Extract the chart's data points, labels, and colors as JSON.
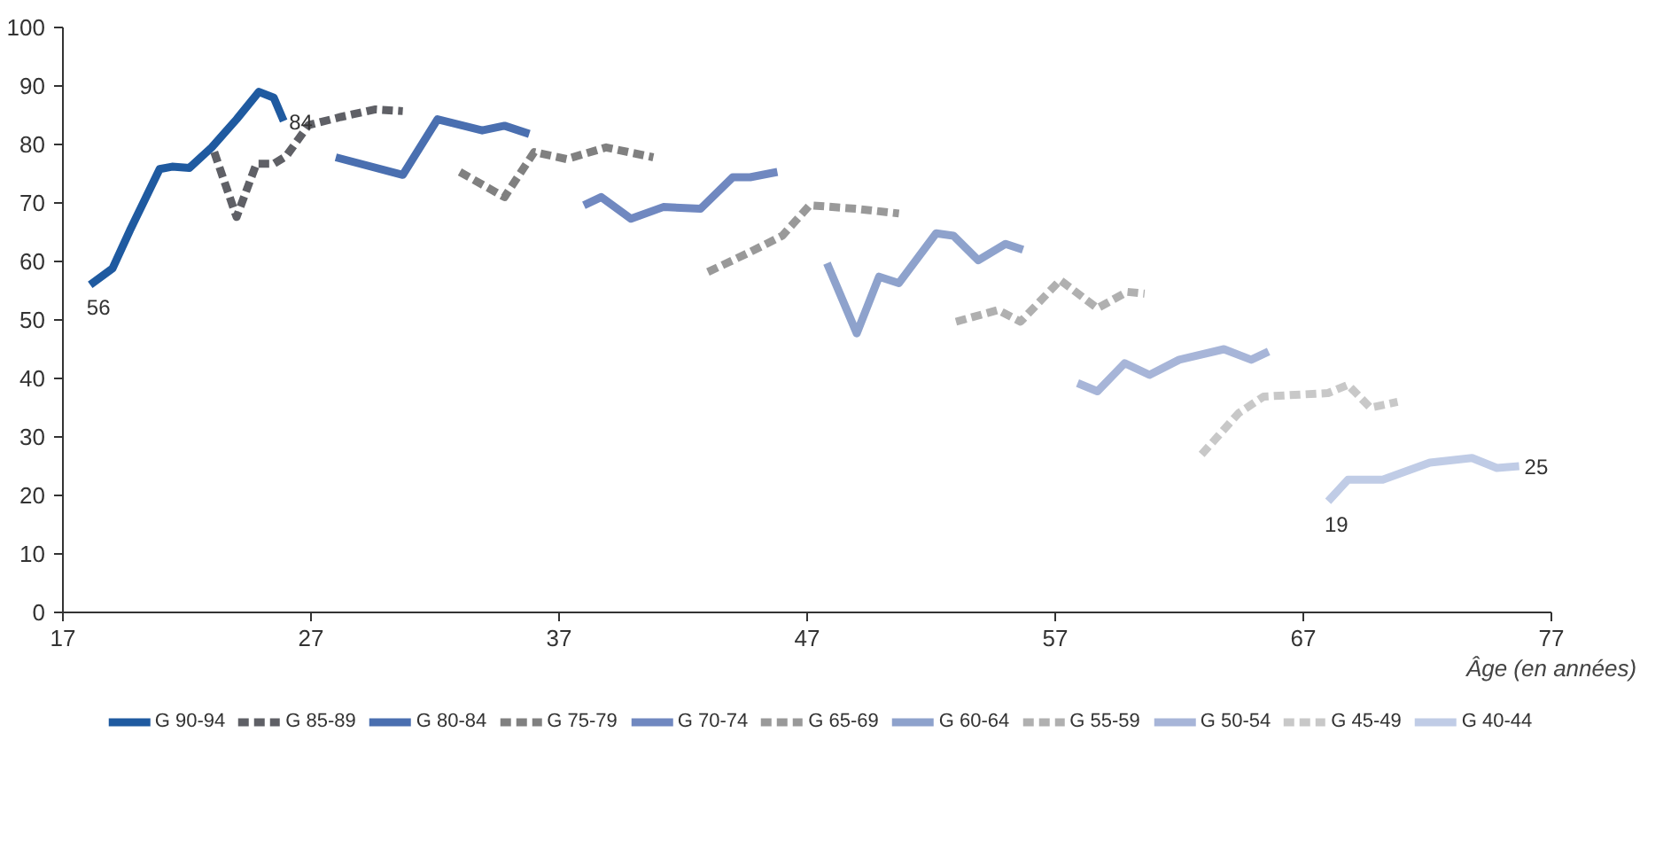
{
  "chart_data": {
    "type": "line",
    "xlabel": "Âge (en années)",
    "xlim": [
      17,
      77
    ],
    "ylim": [
      0,
      100
    ],
    "xticks": [
      17,
      27,
      37,
      47,
      57,
      67,
      77
    ],
    "yticks": [
      0,
      10,
      20,
      30,
      40,
      50,
      60,
      70,
      80,
      90,
      100
    ],
    "grid": false,
    "legend": "bottom",
    "marker": "none",
    "series": [
      {
        "name": "G 90-94",
        "color": "#1f5aa0",
        "line_style": "solid",
        "x": [
          18.1,
          19.0,
          19.7,
          20.9,
          21.4,
          22.1,
          23.0,
          24.0,
          24.9,
          25.5,
          25.9
        ],
        "values": [
          56,
          58.8,
          65.3,
          75.8,
          76.2,
          76,
          79.5,
          84.3,
          89,
          88,
          84
        ]
      },
      {
        "name": "G 85-89",
        "color": "#5f6066",
        "line_style": "dashed",
        "x": [
          23.1,
          24.0,
          24.8,
          25.5,
          26.0,
          26.9,
          28.2,
          29.6,
          30.7
        ],
        "values": [
          78.7,
          67.6,
          76.7,
          76.7,
          78,
          83.3,
          84.7,
          86,
          85.7
        ]
      },
      {
        "name": "G 80-84",
        "color": "#4a6fb0",
        "line_style": "solid",
        "x": [
          28.0,
          30.7,
          32.1,
          33.9,
          34.8,
          35.8
        ],
        "values": [
          77.8,
          74.8,
          84.3,
          82.4,
          83.2,
          81.8
        ]
      },
      {
        "name": "G 75-79",
        "color": "#808080",
        "line_style": "dashed",
        "x": [
          33.0,
          34.8,
          36.0,
          37.3,
          38.9,
          40.8
        ],
        "values": [
          75.3,
          71,
          78.7,
          77.5,
          79.5,
          77.8
        ]
      },
      {
        "name": "G 70-74",
        "color": "#7088c0",
        "line_style": "solid",
        "x": [
          38.0,
          38.7,
          39.9,
          41.2,
          42.7,
          44.0,
          44.7,
          45.8
        ],
        "values": [
          69.6,
          71,
          67.3,
          69.3,
          69,
          74.4,
          74.4,
          75.3
        ]
      },
      {
        "name": "G 65-69",
        "color": "#999999",
        "line_style": "dashed",
        "x": [
          43.0,
          44.7,
          46.0,
          47.1,
          49.0,
          50.7
        ],
        "values": [
          58.2,
          61.6,
          64.4,
          69.6,
          69,
          68.2
        ]
      },
      {
        "name": "G 60-64",
        "color": "#8ea2cc",
        "line_style": "solid",
        "x": [
          47.8,
          49.0,
          49.9,
          50.7,
          52.2,
          52.9,
          53.9,
          55.0,
          55.7
        ],
        "values": [
          59.7,
          47.7,
          57.4,
          56.3,
          64.8,
          64.4,
          60.2,
          63,
          62
        ]
      },
      {
        "name": "G 55-59",
        "color": "#b0b0b0",
        "line_style": "dashed",
        "x": [
          53.0,
          54.7,
          55.6,
          57.2,
          58.7,
          59.9,
          60.6
        ],
        "values": [
          49.7,
          51.7,
          49.7,
          56.8,
          52,
          54.8,
          54.5
        ]
      },
      {
        "name": "G 50-54",
        "color": "#a7b5d8",
        "line_style": "solid",
        "x": [
          57.9,
          58.7,
          59.8,
          60.8,
          62.0,
          63.8,
          64.9,
          65.6
        ],
        "values": [
          39.2,
          37.8,
          42.6,
          40.6,
          43.2,
          45,
          43.2,
          44.6
        ]
      },
      {
        "name": "G 45-49",
        "color": "#c8c8c8",
        "line_style": "dashed",
        "x": [
          62.9,
          64.4,
          65.4,
          68.0,
          68.8,
          69.7,
          70.8
        ],
        "values": [
          27,
          34.1,
          36.9,
          37.5,
          38.9,
          35,
          36
        ]
      },
      {
        "name": "G 40-44",
        "color": "#c0cce6",
        "line_style": "solid",
        "x": [
          68.0,
          68.8,
          70.2,
          72.1,
          73.8,
          74.8,
          75.7
        ],
        "values": [
          19,
          22.7,
          22.7,
          25.6,
          26.4,
          24.7,
          25
        ]
      }
    ],
    "annotations": [
      {
        "text": "56",
        "x": 18.1,
        "y": 56
      },
      {
        "text": "84",
        "x": 25.9,
        "y": 84
      },
      {
        "text": "19",
        "x": 68.0,
        "y": 19
      },
      {
        "text": "25",
        "x": 75.7,
        "y": 25
      }
    ]
  }
}
